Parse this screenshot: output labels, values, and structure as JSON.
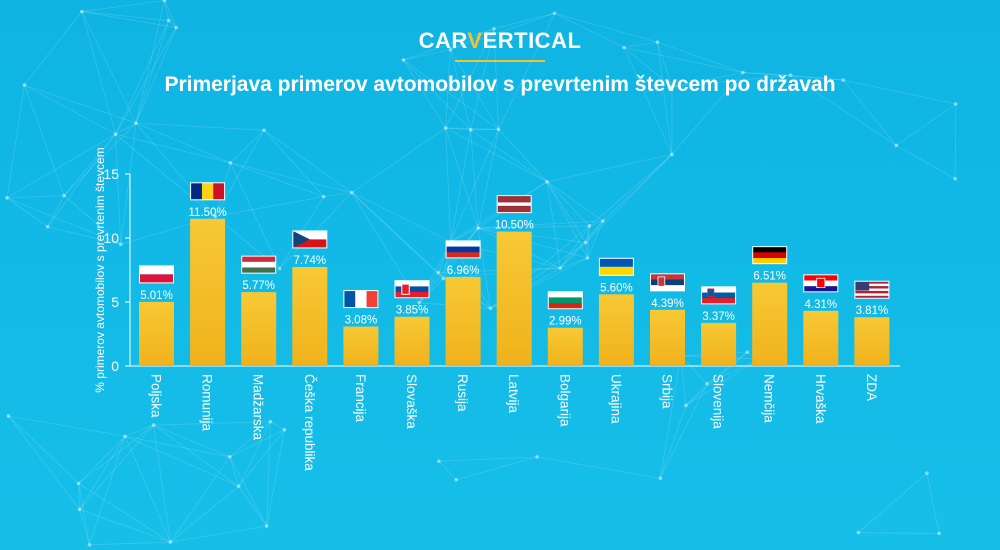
{
  "brand": {
    "logo_part1": "CAR",
    "logo_v": "V",
    "logo_part2": "ERTICAL"
  },
  "colors": {
    "background": "#12b9e6",
    "bar_top": "#f7c935",
    "bar_bottom": "#f0b21c",
    "accent": "#f5c230",
    "text": "#ffffff"
  },
  "chart_data": {
    "type": "bar",
    "title": "Primerjava primerov avtomobilov s prevrtenim števcem po državah",
    "xlabel": "",
    "ylabel": "% primerov avtomobilov s prevrtenim števcem",
    "ylim": [
      0,
      15
    ],
    "yticks": [
      0,
      5,
      10,
      15
    ],
    "grid": false,
    "categories": [
      "Poljska",
      "Romunija",
      "Madžarska",
      "Češka republika",
      "Francija",
      "Slovaška",
      "Rusija",
      "Latvija",
      "Bolgarija",
      "Ukrajina",
      "Srbija",
      "Slovenija",
      "Nemčija",
      "Hrvaška",
      "ZDA"
    ],
    "values": [
      5.01,
      11.5,
      5.77,
      7.74,
      3.08,
      3.85,
      6.96,
      10.5,
      2.99,
      5.6,
      4.39,
      3.37,
      6.51,
      4.31,
      3.81
    ],
    "data_labels": [
      "5.01%",
      "11.50%",
      "5.77%",
      "7.74%",
      "3.08%",
      "3.85%",
      "6.96%",
      "10.50%",
      "2.99%",
      "5.60%",
      "4.39%",
      "3.37%",
      "6.51%",
      "4.31%",
      "3.81%"
    ],
    "flags": [
      "flag-poland-icon",
      "flag-romania-icon",
      "flag-hungary-icon",
      "flag-czech-icon",
      "flag-france-icon",
      "flag-slovakia-icon",
      "flag-russia-icon",
      "flag-latvia-icon",
      "flag-bulgaria-icon",
      "flag-ukraine-icon",
      "flag-serbia-icon",
      "flag-slovenia-icon",
      "flag-germany-icon",
      "flag-croatia-icon",
      "flag-usa-icon"
    ]
  }
}
